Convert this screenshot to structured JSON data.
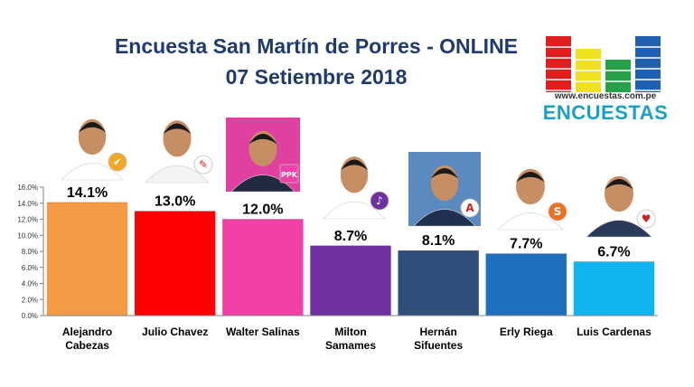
{
  "title_line1": "Encuesta San Martín de Porres - ONLINE",
  "title_line2": "07 Setiembre 2018",
  "logo": {
    "url": "www.encuestas.com.pe",
    "name": "ENCUESTAS",
    "bar_colors": [
      "#e02020",
      "#f0e020",
      "#28a048",
      "#2060b0"
    ]
  },
  "chart_data": {
    "type": "bar",
    "categories": [
      [
        "Alejandro",
        "Cabezas"
      ],
      [
        "Julio Chavez"
      ],
      [
        "Walter Salinas"
      ],
      [
        "Milton",
        "Samames"
      ],
      [
        "Hernán",
        "Sifuentes"
      ],
      [
        "Erly Riega"
      ],
      [
        "Luis Cardenas"
      ]
    ],
    "values": [
      14.1,
      13.0,
      12.0,
      8.7,
      8.1,
      7.7,
      6.7
    ],
    "value_labels": [
      "14.1%",
      "13.0%",
      "12.0%",
      "8.7%",
      "8.1%",
      "7.7%",
      "6.7%"
    ],
    "colors": [
      "#f59a45",
      "#ff0000",
      "#f040a8",
      "#7030a0",
      "#2f4f7a",
      "#1f6fc0",
      "#10b4f0"
    ],
    "ylim": [
      0,
      16
    ],
    "yticks": [
      0,
      2,
      4,
      6,
      8,
      10,
      12,
      14,
      16
    ],
    "ytick_labels": [
      "0.0%",
      "2.0%",
      "4.0%",
      "6.0%",
      "8.0%",
      "10.0%",
      "12.0%",
      "14.0%",
      "16.0%"
    ],
    "grid": false,
    "legend": "none"
  },
  "candidate_photos": [
    {
      "name": "candidate-photo-alejandro-cabezas-icon",
      "bg": "#ffffff",
      "shirt": "#ffffff",
      "badge": "#f5a623",
      "badge_mark": "✔"
    },
    {
      "name": "candidate-photo-julio-chavez-icon",
      "bg": "#ffffff",
      "shirt": "#f4f4f4",
      "badge": "#ffffff",
      "badge_mark": "✎"
    },
    {
      "name": "candidate-photo-walter-salinas-icon",
      "bg": "#e040a0",
      "shirt": "#222a40",
      "badge": "#f040a8",
      "badge_mark": "PPK"
    },
    {
      "name": "candidate-photo-milton-samames-icon",
      "bg": "#ffffff",
      "shirt": "#ffffff",
      "badge": "#7030a0",
      "badge_mark": "♪"
    },
    {
      "name": "candidate-photo-hernan-sifuentes-icon",
      "bg": "#5a8ac0",
      "shirt": "#1f3050",
      "badge": "#ffffff",
      "badge_mark": "A"
    },
    {
      "name": "candidate-photo-erly-riega-icon",
      "bg": "#ffffff",
      "shirt": "#ffffff",
      "badge": "#f07020",
      "badge_mark": "S"
    },
    {
      "name": "candidate-photo-luis-cardenas-icon",
      "bg": "#ffffff",
      "shirt": "#2a3a5a",
      "badge": "#ffffff",
      "badge_mark": "♥"
    }
  ]
}
